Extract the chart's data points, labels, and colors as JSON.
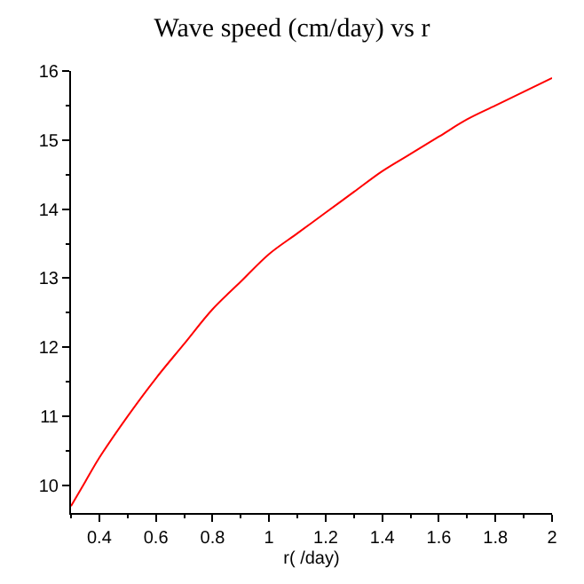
{
  "chart_data": {
    "type": "line",
    "title": "Wave speed (cm/day) vs r",
    "xlabel": "r( /day)",
    "x": [
      0.3,
      0.35,
      0.4,
      0.5,
      0.6,
      0.7,
      0.8,
      0.9,
      1.0,
      1.1,
      1.2,
      1.3,
      1.4,
      1.5,
      1.6,
      1.7,
      1.8,
      1.9,
      2.0
    ],
    "series": [
      {
        "color": "#ff0000",
        "values": [
          9.7,
          10.05,
          10.4,
          11.0,
          11.55,
          12.05,
          12.55,
          12.95,
          13.35,
          13.65,
          13.95,
          14.25,
          14.55,
          14.8,
          15.05,
          15.3,
          15.5,
          15.7,
          15.9
        ]
      }
    ],
    "xlim": [
      0.3,
      2.0
    ],
    "ylim": [
      9.6,
      16.0
    ],
    "xticks": [
      0.4,
      0.6,
      0.8,
      1,
      1.2,
      1.4,
      1.6,
      1.8,
      2
    ],
    "yticks": [
      10,
      11,
      12,
      13,
      14,
      15,
      16
    ],
    "marker": "none",
    "line_style": "solid"
  }
}
